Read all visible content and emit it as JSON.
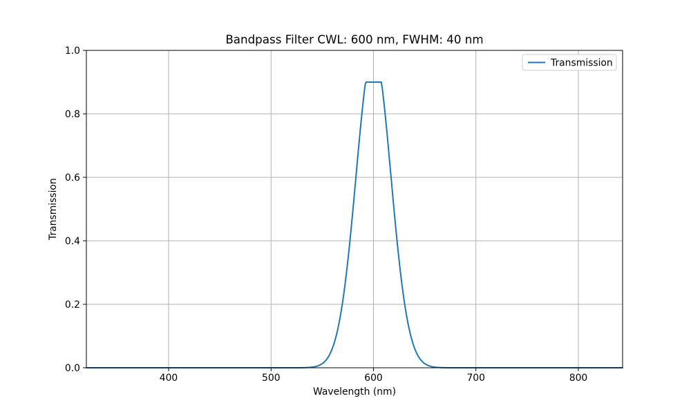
{
  "figure": {
    "background": "#ffffff"
  },
  "chart_data": {
    "type": "line",
    "title": "Bandpass Filter CWL: 600 nm, FWHM: 40 nm",
    "xlabel": "Wavelength (nm)",
    "ylabel": "Transmission",
    "xlim": [
      319.7,
      843.2
    ],
    "ylim": [
      0.0,
      1.0
    ],
    "xtick_values": [
      400,
      500,
      600,
      700,
      800
    ],
    "xtick_labels": [
      "400",
      "500",
      "600",
      "700",
      "800"
    ],
    "ytick_values": [
      0.0,
      0.2,
      0.4,
      0.6,
      0.8,
      1.0
    ],
    "ytick_labels": [
      "0.0",
      "0.2",
      "0.4",
      "0.6",
      "0.8",
      "1.0"
    ],
    "grid": true,
    "legend": {
      "position": "upper right",
      "entries": [
        {
          "label": "Transmission",
          "color": "#1f77b4"
        }
      ]
    },
    "series": [
      {
        "name": "Transmission",
        "color": "#1f77b4",
        "line_width": 2,
        "model": {
          "kind": "gaussian_clipped",
          "cwl_nm": 600,
          "fwhm_nm": 40,
          "sigma_nm": 16.986,
          "amplitude": 1.0,
          "clip": 0.9
        },
        "sample_points": {
          "x": [
            320,
            400,
            500,
            520,
            530,
            540,
            550,
            560,
            565,
            570,
            575,
            580,
            585,
            590,
            592,
            595,
            600,
            605,
            608,
            610,
            615,
            620,
            625,
            630,
            635,
            640,
            650,
            660,
            670,
            680,
            700,
            800,
            843
          ],
          "y": [
            0,
            0,
            0,
            0,
            0.0002,
            0.002,
            0.0131,
            0.0625,
            0.1197,
            0.2102,
            0.3386,
            0.5,
            0.6772,
            0.8409,
            0.895,
            0.9,
            0.9,
            0.9,
            0.895,
            0.8409,
            0.6772,
            0.5,
            0.3386,
            0.2102,
            0.1197,
            0.0625,
            0.0131,
            0.002,
            0.0002,
            0,
            0,
            0,
            0
          ]
        }
      }
    ],
    "colors": {
      "grid": "#b0b0b0",
      "spine": "#000000",
      "text": "#000000",
      "legend_border": "#cccccc",
      "background": "#ffffff"
    }
  }
}
